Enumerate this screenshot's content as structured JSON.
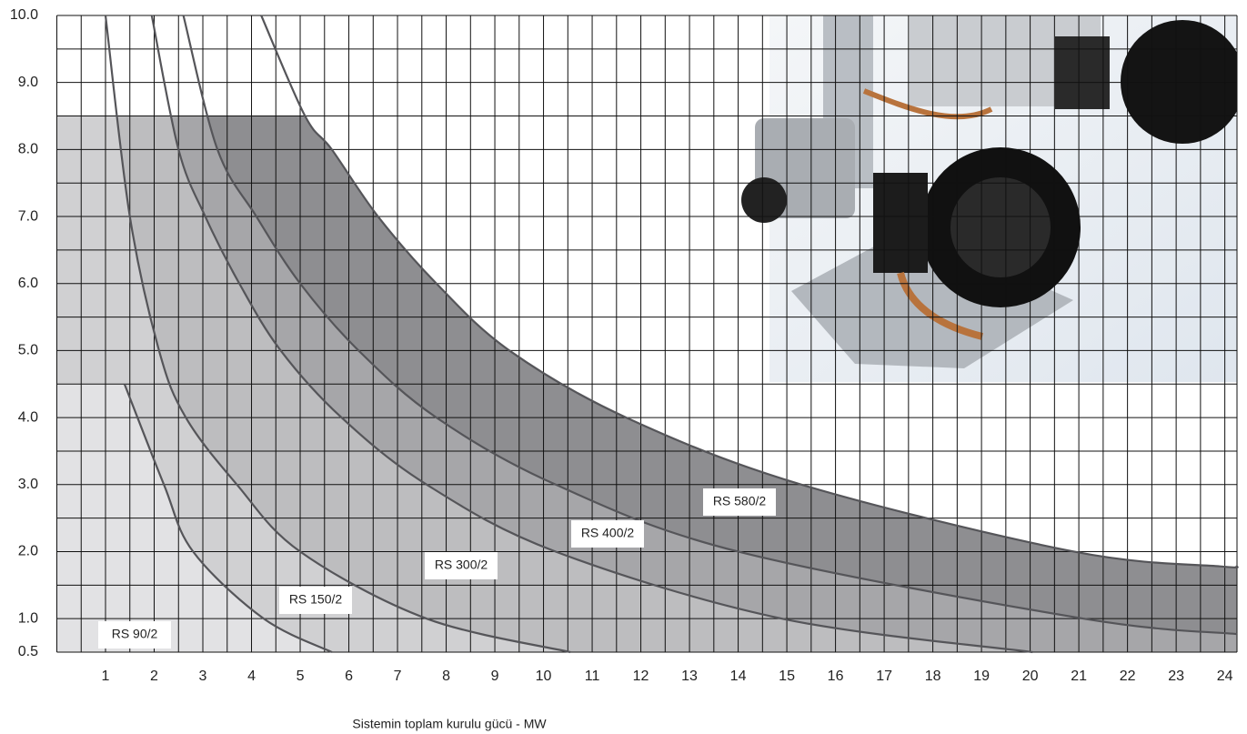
{
  "chart_data": {
    "type": "line",
    "xlabel": "Sistemin toplam kurulu gücü - MW",
    "xlim": [
      0,
      24.25
    ],
    "ylim": [
      0.5,
      10
    ],
    "xticks": [
      1,
      2,
      3,
      4,
      5,
      6,
      7,
      8,
      9,
      10,
      11,
      12,
      13,
      14,
      15,
      16,
      17,
      18,
      19,
      20,
      21,
      22,
      23,
      24
    ],
    "yticks": [
      0.5,
      {
        "value": 1,
        "label": "1.0"
      },
      {
        "value": 2,
        "label": "2.0"
      },
      {
        "value": 3,
        "label": "3.0"
      },
      {
        "value": 4,
        "label": "4.0"
      },
      {
        "value": 5,
        "label": "5.0"
      },
      {
        "value": 6,
        "label": "6.0"
      },
      {
        "value": 7,
        "label": "7.0"
      },
      {
        "value": 8,
        "label": "8.0"
      },
      {
        "value": 9,
        "label": "9.0"
      },
      {
        "value": 10,
        "label": "10.0"
      }
    ],
    "grid": true,
    "grid_step": 0.5,
    "region_top": 8.5,
    "series": [
      {
        "name": "RS 90/2",
        "color": "#555559",
        "fill": "#e2e2e4",
        "x": [
          1.39,
          2.2,
          2.8,
          4.25,
          5.65
        ],
        "values": [
          4.5,
          3.0,
          2.0,
          1.0,
          0.5
        ]
      },
      {
        "name": "RS 150/2",
        "color": "#555559",
        "fill": "#d0d0d2",
        "x": [
          1.0,
          1.5,
          2.1,
          2.65,
          3.7,
          5.0,
          7.6,
          10.55
        ],
        "values": [
          10,
          7,
          5,
          4,
          3,
          2,
          1,
          0.5
        ]
      },
      {
        "name": "RS 300/2",
        "color": "#555559",
        "fill": "#bdbdbf",
        "x": [
          1.95,
          2.5,
          3.05,
          3.75,
          4.6,
          5.85,
          7.6,
          10.25,
          14.9,
          20.05
        ],
        "values": [
          10,
          8,
          7,
          6,
          5,
          4,
          3,
          2,
          1,
          0.5
        ]
      },
      {
        "name": "RS 400/2",
        "color": "#555559",
        "fill": "#a6a6a9",
        "x": [
          2.6,
          3.3,
          4.1,
          5.0,
          6.2,
          7.8,
          10.25,
          14.0,
          21.1,
          24.25
        ],
        "values": [
          10,
          8,
          7,
          6,
          5,
          4,
          3,
          2,
          1,
          0.77
        ]
      },
      {
        "name": "RS 580/2",
        "color": "#555559",
        "fill": "#8e8e91",
        "x": [
          4.2,
          5.1,
          5.65,
          6.6,
          7.8,
          9.3,
          11.7,
          15.3,
          20.9,
          23.9,
          24.25
        ],
        "values": [
          10,
          8.5,
          8,
          7,
          6,
          5,
          4,
          3,
          2,
          1.78,
          1.78
        ]
      }
    ]
  }
}
